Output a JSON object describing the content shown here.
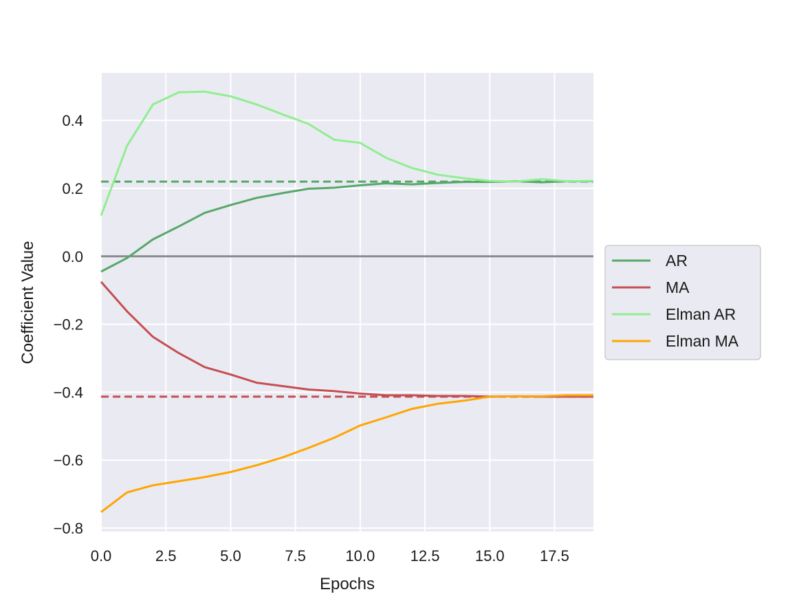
{
  "chart_data": {
    "type": "line",
    "title": "",
    "xlabel": "Epochs",
    "ylabel": "Coefficient Value",
    "xlim": [
      0,
      19
    ],
    "ylim": [
      -0.81,
      0.54
    ],
    "xticks": [
      0.0,
      2.5,
      5.0,
      7.5,
      10.0,
      12.5,
      15.0,
      17.5
    ],
    "xtick_labels": [
      "0.0",
      "2.5",
      "5.0",
      "7.5",
      "10.0",
      "12.5",
      "15.0",
      "17.5"
    ],
    "yticks": [
      -0.8,
      -0.6,
      -0.4,
      -0.2,
      0.0,
      0.2,
      0.4
    ],
    "ytick_labels": [
      "−0.8",
      "−0.6",
      "−0.4",
      "−0.2",
      "0.0",
      "0.2",
      "0.4"
    ],
    "grid": true,
    "legend_position": "right",
    "background_color": "#eaeaf2",
    "x": [
      0,
      1,
      2,
      3,
      4,
      5,
      6,
      7,
      8,
      9,
      10,
      11,
      12,
      13,
      14,
      15,
      16,
      17,
      18,
      19
    ],
    "series": [
      {
        "name": "AR",
        "color": "#55a868",
        "values": [
          -0.045,
          -0.005,
          0.05,
          0.088,
          0.128,
          0.151,
          0.172,
          0.186,
          0.199,
          0.202,
          0.209,
          0.215,
          0.212,
          0.216,
          0.219,
          0.219,
          0.221,
          0.218,
          0.221,
          0.221
        ]
      },
      {
        "name": "MA",
        "color": "#c44e52",
        "values": [
          -0.075,
          -0.162,
          -0.237,
          -0.285,
          -0.326,
          -0.348,
          -0.372,
          -0.382,
          -0.392,
          -0.397,
          -0.404,
          -0.409,
          -0.409,
          -0.411,
          -0.411,
          -0.413,
          -0.412,
          -0.413,
          -0.413,
          -0.413
        ]
      },
      {
        "name": "Elman AR",
        "color": "#90ee90",
        "values": [
          0.12,
          0.325,
          0.447,
          0.483,
          0.485,
          0.471,
          0.447,
          0.418,
          0.39,
          0.343,
          0.334,
          0.29,
          0.26,
          0.24,
          0.23,
          0.222,
          0.22,
          0.227,
          0.221,
          0.222
        ]
      },
      {
        "name": "Elman MA",
        "color": "#ffa500",
        "values": [
          -0.753,
          -0.695,
          -0.674,
          -0.662,
          -0.65,
          -0.635,
          -0.615,
          -0.592,
          -0.564,
          -0.534,
          -0.498,
          -0.474,
          -0.449,
          -0.434,
          -0.425,
          -0.413,
          -0.412,
          -0.412,
          -0.409,
          -0.409
        ]
      }
    ],
    "reference_lines": [
      {
        "orientation": "horizontal",
        "y": 0.22,
        "color": "#55a868",
        "style": "dashed"
      },
      {
        "orientation": "horizontal",
        "y": -0.413,
        "color": "#c44e52",
        "style": "dashed"
      },
      {
        "orientation": "horizontal",
        "y": 0.0,
        "color": "#8c8c8c",
        "style": "solid"
      }
    ]
  }
}
